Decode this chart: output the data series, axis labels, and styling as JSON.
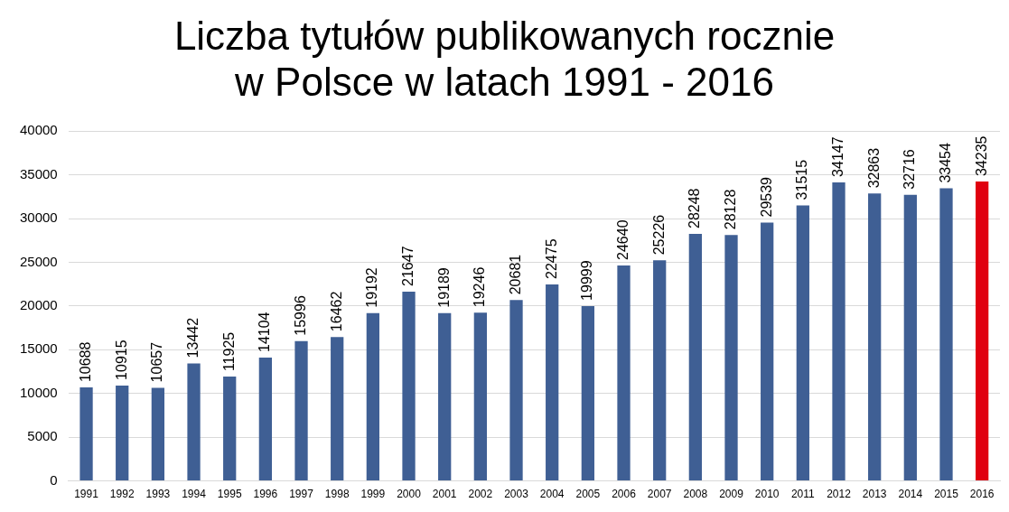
{
  "chart_data": {
    "type": "bar",
    "title": "Liczba tytułów publikowanych rocznie\nw Polsce w latach 1991 - 2016",
    "categories": [
      "1991",
      "1992",
      "1993",
      "1994",
      "1995",
      "1996",
      "1997",
      "1998",
      "1999",
      "2000",
      "2001",
      "2002",
      "2003",
      "2004",
      "2005",
      "2006",
      "2007",
      "2008",
      "2009",
      "2010",
      "2011",
      "2012",
      "2013",
      "2014",
      "2015",
      "2016"
    ],
    "values": [
      10688,
      10915,
      10657,
      13442,
      11925,
      14104,
      15996,
      16462,
      19192,
      21647,
      19189,
      19246,
      20681,
      22475,
      19999,
      24640,
      25226,
      28248,
      28128,
      29539,
      31515,
      34147,
      32863,
      32716,
      33454,
      34235
    ],
    "colors": [
      "#3f5f94",
      "#3f5f94",
      "#3f5f94",
      "#3f5f94",
      "#3f5f94",
      "#3f5f94",
      "#3f5f94",
      "#3f5f94",
      "#3f5f94",
      "#3f5f94",
      "#3f5f94",
      "#3f5f94",
      "#3f5f94",
      "#3f5f94",
      "#3f5f94",
      "#3f5f94",
      "#3f5f94",
      "#3f5f94",
      "#3f5f94",
      "#3f5f94",
      "#3f5f94",
      "#3f5f94",
      "#3f5f94",
      "#3f5f94",
      "#3f5f94",
      "#e0000f"
    ],
    "ylim": [
      0,
      40000
    ],
    "yticks": [
      0,
      5000,
      10000,
      15000,
      20000,
      25000,
      30000,
      35000,
      40000
    ],
    "grid": "y",
    "legend": false,
    "data_labels": true
  }
}
